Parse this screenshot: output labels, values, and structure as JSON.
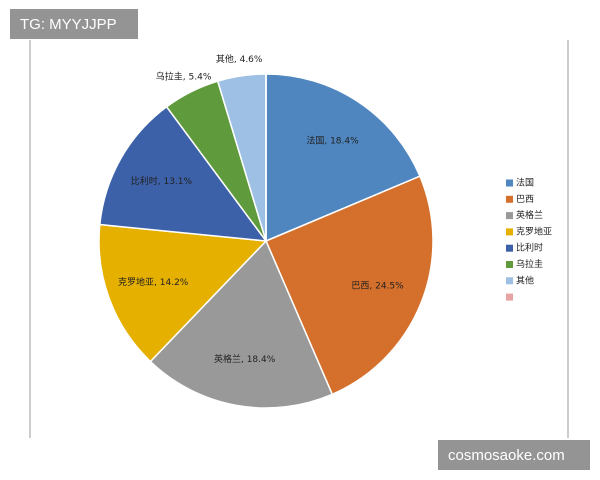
{
  "chart_data": {
    "type": "pie",
    "categories": [
      "法国",
      "巴西",
      "英格兰",
      "克罗地亚",
      "比利时",
      "乌拉圭",
      "其他",
      null
    ],
    "values": [
      18.4,
      24.5,
      18.4,
      14.2,
      13.1,
      5.4,
      4.6,
      0
    ],
    "value_labels": [
      "法国, 18.4%",
      "巴西, 24.5%",
      "英格兰, 18.4%",
      "克罗地亚, 14.2%",
      "比利时, 13.1%",
      "乌拉圭, 5.4%",
      "其他, 4.6%",
      null
    ],
    "colors": [
      "#4f86bf",
      "#d5702c",
      "#999999",
      "#e6b000",
      "#3c61a8",
      "#5f9b3c",
      "#9dc0e4",
      "#e8a4a4"
    ],
    "legend": "right"
  },
  "overlays": {
    "top_left": "TG: MYYJJPP",
    "bottom_right": "cosmosaoke.com"
  }
}
